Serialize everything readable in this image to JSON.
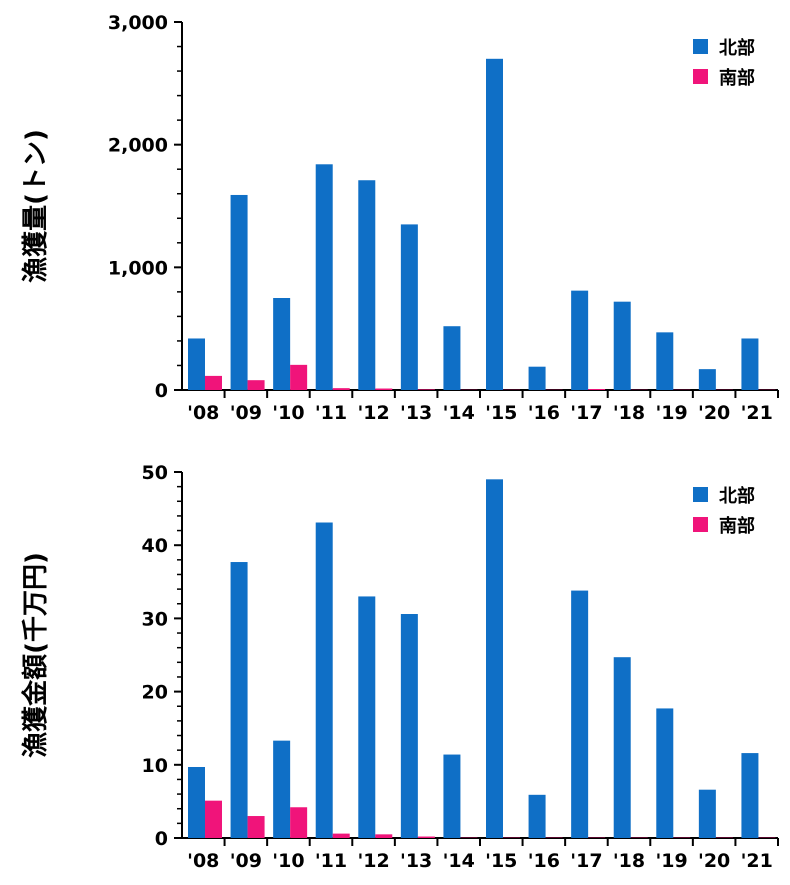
{
  "colors": {
    "north": "#0f6fc6",
    "south": "#f0147a",
    "axis": "#000000"
  },
  "chart_data": [
    {
      "type": "bar",
      "ylabel": "漁獲量(トン)",
      "ylim": [
        0,
        3000
      ],
      "yticks": [
        "0",
        "1,000",
        "2,000",
        "3,000"
      ],
      "ytick_values": [
        0,
        1000,
        2000,
        3000
      ],
      "categories": [
        "'08",
        "'09",
        "'10",
        "'11",
        "'12",
        "'13",
        "'14",
        "'15",
        "'16",
        "'17",
        "'18",
        "'19",
        "'20",
        "'21"
      ],
      "legend_position": "top-right",
      "series": [
        {
          "name": "北部",
          "values": [
            420,
            1590,
            750,
            1840,
            1710,
            1350,
            520,
            2700,
            190,
            810,
            720,
            470,
            170,
            420
          ]
        },
        {
          "name": "南部",
          "values": [
            115,
            80,
            205,
            15,
            12,
            5,
            2,
            2,
            2,
            8,
            2,
            2,
            2,
            2
          ]
        }
      ]
    },
    {
      "type": "bar",
      "ylabel": "漁獲金額(千万円)",
      "ylim": [
        0,
        50
      ],
      "yticks": [
        "0",
        "10",
        "20",
        "30",
        "40",
        "50"
      ],
      "ytick_values": [
        0,
        10,
        20,
        30,
        40,
        50
      ],
      "categories": [
        "'08",
        "'09",
        "'10",
        "'11",
        "'12",
        "'13",
        "'14",
        "'15",
        "'16",
        "'17",
        "'18",
        "'19",
        "'20",
        "'21"
      ],
      "legend_position": "top-right",
      "series": [
        {
          "name": "北部",
          "values": [
            9.7,
            37.7,
            13.3,
            43.1,
            33.0,
            30.6,
            11.4,
            49.0,
            5.9,
            33.8,
            24.7,
            17.7,
            6.6,
            11.6
          ]
        },
        {
          "name": "南部",
          "values": [
            5.1,
            3.0,
            4.2,
            0.6,
            0.5,
            0.2,
            0.05,
            0.05,
            0.05,
            0.05,
            0.05,
            0.05,
            0.05,
            0.05
          ]
        }
      ]
    }
  ]
}
